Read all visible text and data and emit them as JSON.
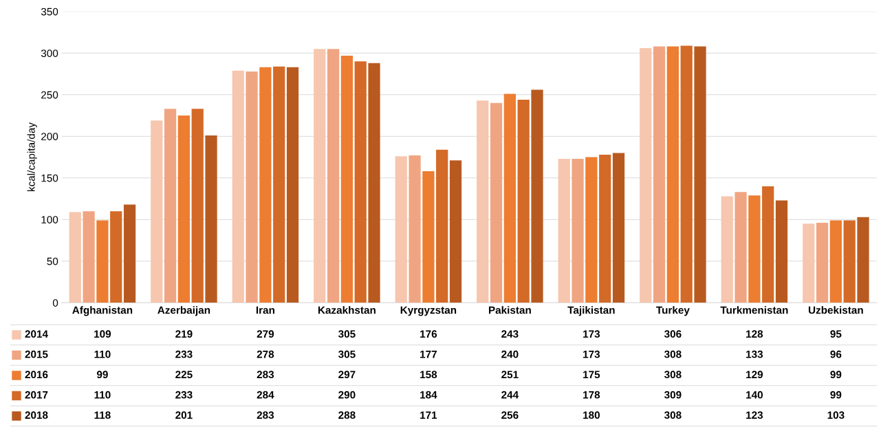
{
  "chart_data": {
    "type": "bar",
    "ylabel": "kcal/capita/day",
    "categories": [
      "Afghanistan",
      "Azerbaijan",
      "Iran",
      "Kazakhstan",
      "Kyrgyzstan",
      "Pakistan",
      "Tajikistan",
      "Turkey",
      "Turkmenistan",
      "Uzbekistan"
    ],
    "series": [
      {
        "name": "2014",
        "color": "#f6c6ae",
        "values": [
          109,
          219,
          279,
          305,
          176,
          243,
          173,
          306,
          128,
          95
        ]
      },
      {
        "name": "2015",
        "color": "#f0a582",
        "values": [
          110,
          233,
          278,
          305,
          177,
          240,
          173,
          308,
          133,
          96
        ]
      },
      {
        "name": "2016",
        "color": "#ed7d31",
        "values": [
          99,
          225,
          283,
          297,
          158,
          251,
          175,
          308,
          129,
          99
        ]
      },
      {
        "name": "2017",
        "color": "#d46a27",
        "values": [
          110,
          233,
          284,
          290,
          184,
          244,
          178,
          309,
          140,
          99
        ]
      },
      {
        "name": "2018",
        "color": "#b85a20",
        "values": [
          118,
          201,
          283,
          288,
          171,
          256,
          180,
          308,
          123,
          103
        ]
      }
    ],
    "ylim": [
      0,
      350
    ],
    "yticks": [
      0,
      50,
      100,
      150,
      200,
      250,
      300,
      350
    ],
    "grid": "y",
    "data_labels": true,
    "legend": "bottom"
  }
}
